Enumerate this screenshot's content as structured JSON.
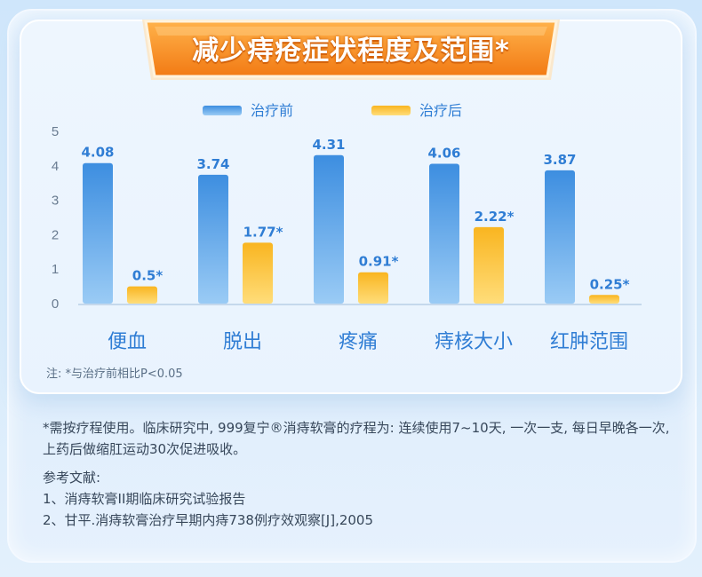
{
  "banner": {
    "title": "减少痔疮症状程度及范围*"
  },
  "legend": [
    {
      "label": "治疗前",
      "color": "#3d8ee0"
    },
    {
      "label": "治疗后",
      "color": "#f7b928"
    }
  ],
  "chart_data": {
    "type": "bar",
    "title": "减少痔疮症状程度及范围*",
    "categories": [
      "便血",
      "脱出",
      "疼痛",
      "痔核大小",
      "红肿范围"
    ],
    "series": [
      {
        "name": "治疗前",
        "values": [
          4.08,
          3.74,
          4.31,
          4.06,
          3.87
        ],
        "labels": [
          "4.08",
          "3.74",
          "4.31",
          "4.06",
          "3.87"
        ]
      },
      {
        "name": "治疗后",
        "values": [
          0.5,
          1.77,
          0.91,
          2.22,
          0.25
        ],
        "labels": [
          "0.5*",
          "1.77*",
          "0.91*",
          "2.22*",
          "0.25*"
        ]
      }
    ],
    "yticks": [
      "0",
      "1",
      "2",
      "3",
      "4",
      "5"
    ],
    "ylim": [
      0,
      5
    ],
    "xlabel": "",
    "ylabel": "",
    "grid": false,
    "legend_position": "top"
  },
  "note": "注: *与治疗前相比P<0.05",
  "footer": {
    "usage": "*需按疗程使用。临床研究中, 999复宁®消痔软膏的疗程为: 连续使用7~10天, 一次一支, 每日早晚各一次, 上药后做缩肛运动30次促进吸收。",
    "refs_title": "参考文献:",
    "refs": [
      "1、消痔软膏II期临床研究试验报告",
      "2、甘平.消痔软膏治疗早期内痔738例疗效观察[J],2005"
    ]
  },
  "colors": {
    "before_top": "#3d8ee0",
    "before_bottom": "#8ec3f3",
    "after_top": "#f7b928",
    "after_bottom": "#ffd56a",
    "value_text": "#2f7dd4",
    "category_text": "#2f7dd4",
    "axis_text": "#6a7c91",
    "banner": "#f58a1c"
  }
}
